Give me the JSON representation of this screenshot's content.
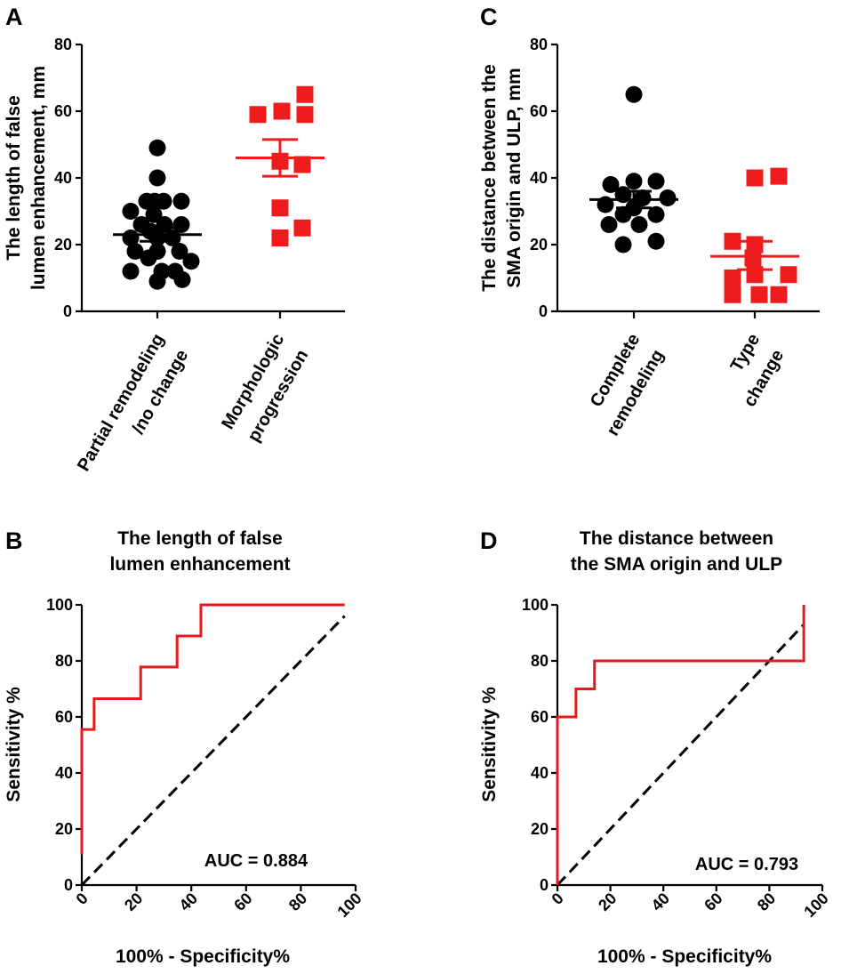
{
  "colors": {
    "group1": "#000000",
    "group2": "#ee1c1c",
    "roc": "#e41a1c",
    "diagonal": "#000000"
  },
  "panels": {
    "A": {
      "letter": "A"
    },
    "B": {
      "letter": "B"
    },
    "C": {
      "letter": "C"
    },
    "D": {
      "letter": "D"
    }
  },
  "chart_data": [
    {
      "panel": "A",
      "type": "scatter",
      "ylabel_lines": [
        "The length of false",
        "lumen enhancement, mm"
      ],
      "ylim": [
        0,
        80
      ],
      "yticks": [
        0,
        20,
        40,
        60,
        80
      ],
      "groups": [
        {
          "name_lines": [
            "Partial remodeling",
            "/no change"
          ],
          "marker": "circle",
          "color": "#000000",
          "mean": 23,
          "sem_low": 21,
          "sem_high": 25,
          "points": [
            {
              "dx": 0,
              "y": 49
            },
            {
              "dx": 0,
              "y": 40
            },
            {
              "dx": -12,
              "y": 33
            },
            {
              "dx": -3,
              "y": 33
            },
            {
              "dx": 7,
              "y": 33
            },
            {
              "dx": 27,
              "y": 33
            },
            {
              "dx": -30,
              "y": 30
            },
            {
              "dx": -4,
              "y": 29
            },
            {
              "dx": -18,
              "y": 26
            },
            {
              "dx": 8,
              "y": 26
            },
            {
              "dx": 27,
              "y": 26
            },
            {
              "dx": -8,
              "y": 24
            },
            {
              "dx": -30,
              "y": 22
            },
            {
              "dx": 0,
              "y": 22
            },
            {
              "dx": 17,
              "y": 22
            },
            {
              "dx": -25,
              "y": 18
            },
            {
              "dx": 0,
              "y": 18
            },
            {
              "dx": 25,
              "y": 18
            },
            {
              "dx": -10,
              "y": 16
            },
            {
              "dx": 38,
              "y": 15
            },
            {
              "dx": -30,
              "y": 12
            },
            {
              "dx": 5,
              "y": 12
            },
            {
              "dx": 20,
              "y": 12
            },
            {
              "dx": 0,
              "y": 9
            },
            {
              "dx": 28,
              "y": 9.5
            }
          ]
        },
        {
          "name_lines": [
            "Morphologic",
            "progression"
          ],
          "marker": "square",
          "color": "#ee1c1c",
          "mean": 46,
          "sem_low": 40.5,
          "sem_high": 51.5,
          "points": [
            {
              "dx": 28,
              "y": 65
            },
            {
              "dx": -25,
              "y": 59
            },
            {
              "dx": 2,
              "y": 60
            },
            {
              "dx": 28,
              "y": 59
            },
            {
              "dx": 0,
              "y": 45
            },
            {
              "dx": 25,
              "y": 44
            },
            {
              "dx": 0,
              "y": 31
            },
            {
              "dx": 25,
              "y": 25
            },
            {
              "dx": 0,
              "y": 22
            }
          ]
        }
      ]
    },
    {
      "panel": "B",
      "type": "line",
      "title_lines": [
        "The length of false",
        "lumen enhancement"
      ],
      "xlabel": "100% - Specificity%",
      "ylabel": "Sensitivity %",
      "xlim": [
        0,
        100
      ],
      "ylim": [
        0,
        100
      ],
      "xticks": [
        0,
        20,
        40,
        60,
        80,
        100
      ],
      "yticks": [
        0,
        20,
        40,
        60,
        80,
        100
      ],
      "roc": {
        "x": [
          0,
          0,
          4.5,
          4.5,
          21.5,
          21.5,
          34.8,
          34.8,
          43.5,
          43.5,
          96
        ],
        "y": [
          11,
          55.5,
          55.5,
          66.5,
          66.5,
          77.8,
          77.8,
          88.9,
          88.9,
          100,
          100
        ]
      },
      "diagonal": {
        "x": [
          0,
          96
        ],
        "y": [
          0,
          96
        ]
      },
      "annotation": "AUC = 0.884"
    },
    {
      "panel": "C",
      "type": "scatter",
      "ylabel_lines": [
        "The distance between the",
        "SMA origin and ULP, mm"
      ],
      "ylim": [
        0,
        80
      ],
      "yticks": [
        0,
        20,
        40,
        60,
        80
      ],
      "groups": [
        {
          "name_lines": [
            "Complete",
            "remodeling"
          ],
          "marker": "circle",
          "color": "#000000",
          "mean": 33.5,
          "sem_low": 31,
          "sem_high": 36,
          "points": [
            {
              "dx": 0,
              "y": 65
            },
            {
              "dx": -26,
              "y": 38
            },
            {
              "dx": 0,
              "y": 39
            },
            {
              "dx": 25,
              "y": 39
            },
            {
              "dx": -12,
              "y": 35
            },
            {
              "dx": 10,
              "y": 34
            },
            {
              "dx": 38,
              "y": 34
            },
            {
              "dx": -32,
              "y": 32
            },
            {
              "dx": 0,
              "y": 31
            },
            {
              "dx": -12,
              "y": 29
            },
            {
              "dx": 25,
              "y": 29
            },
            {
              "dx": -28,
              "y": 26
            },
            {
              "dx": 6,
              "y": 26
            },
            {
              "dx": -12,
              "y": 20
            },
            {
              "dx": 25,
              "y": 21
            }
          ]
        },
        {
          "name_lines": [
            "Type",
            "change"
          ],
          "marker": "square",
          "color": "#ee1c1c",
          "mean": 16.5,
          "sem_low": 12.5,
          "sem_high": 21,
          "points": [
            {
              "dx": 0,
              "y": 40
            },
            {
              "dx": 27,
              "y": 40.5
            },
            {
              "dx": -25,
              "y": 21
            },
            {
              "dx": 0,
              "y": 20
            },
            {
              "dx": -2,
              "y": 16
            },
            {
              "dx": -25,
              "y": 10
            },
            {
              "dx": 0,
              "y": 11
            },
            {
              "dx": 38,
              "y": 11
            },
            {
              "dx": -25,
              "y": 5
            },
            {
              "dx": 5,
              "y": 5
            },
            {
              "dx": 27,
              "y": 5
            }
          ]
        }
      ]
    },
    {
      "panel": "D",
      "type": "line",
      "title_lines": [
        "The distance between",
        "the SMA origin and ULP"
      ],
      "xlabel": "100% - Specificity%",
      "ylabel": "Sensitivity %",
      "xlim": [
        0,
        100
      ],
      "ylim": [
        0,
        100
      ],
      "xticks": [
        0,
        20,
        40,
        60,
        80,
        100
      ],
      "yticks": [
        0,
        20,
        40,
        60,
        80,
        100
      ],
      "roc": {
        "x": [
          0,
          0,
          7,
          7,
          14,
          14,
          93,
          93
        ],
        "y": [
          0,
          60,
          60,
          70,
          70,
          80,
          80,
          100
        ]
      },
      "diagonal": {
        "x": [
          0,
          93
        ],
        "y": [
          0,
          93
        ]
      },
      "annotation": "AUC = 0.793"
    }
  ]
}
